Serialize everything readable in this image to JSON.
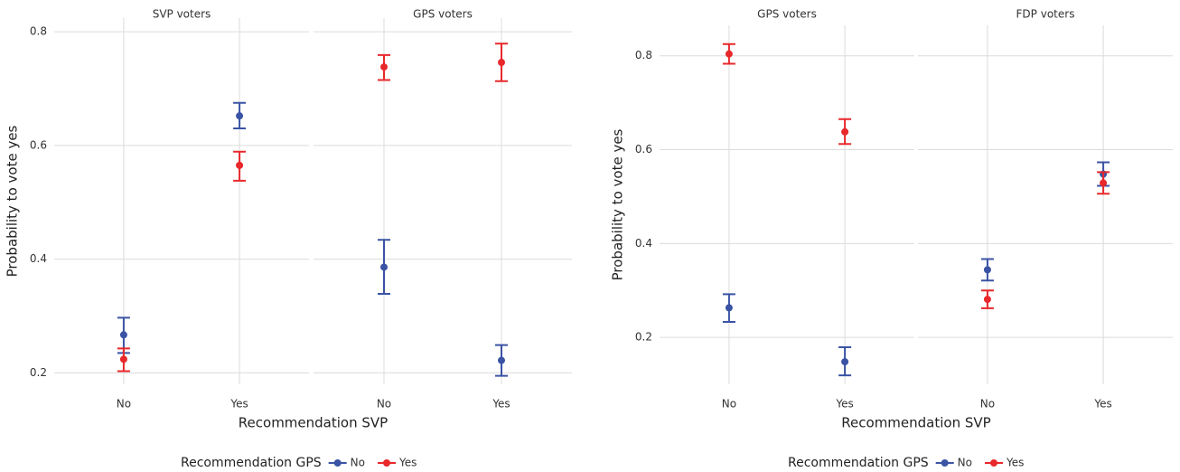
{
  "chart_data": [
    {
      "type": "errorbar",
      "y_label": "Probability to vote yes",
      "x_label": "Recommendation SVP",
      "legend_title": "Recommendation GPS",
      "categories": [
        "No",
        "Yes"
      ],
      "ylim": [
        0.18,
        0.824
      ],
      "yticks": [
        0.2,
        0.4,
        0.6,
        0.8
      ],
      "grid": true,
      "series": [
        {
          "name": "No",
          "color": "#3a53a4"
        },
        {
          "name": "Yes",
          "color": "#e8282b"
        }
      ],
      "facets": [
        {
          "title": "SVP voters",
          "series": [
            {
              "values": [
                0.267,
                0.652
              ],
              "lower": [
                0.235,
                0.63
              ],
              "upper": [
                0.297,
                0.675
              ]
            },
            {
              "values": [
                0.224,
                0.565
              ],
              "lower": [
                0.203,
                0.538
              ],
              "upper": [
                0.243,
                0.589
              ]
            }
          ]
        },
        {
          "title": "GPS voters",
          "series": [
            {
              "values": [
                0.386,
                0.222
              ],
              "lower": [
                0.339,
                0.195
              ],
              "upper": [
                0.434,
                0.249
              ]
            },
            {
              "values": [
                0.738,
                0.746
              ],
              "lower": [
                0.715,
                0.713
              ],
              "upper": [
                0.759,
                0.779
              ]
            }
          ]
        }
      ]
    },
    {
      "type": "errorbar",
      "y_label": "Probability to vote yes",
      "x_label": "Recommendation SVP",
      "legend_title": "Recommendation GPS",
      "categories": [
        "No",
        "Yes"
      ],
      "ylim": [
        0.1,
        0.865
      ],
      "yticks": [
        0.2,
        0.4,
        0.6,
        0.8
      ],
      "grid": true,
      "series": [
        {
          "name": "No",
          "color": "#3a53a4"
        },
        {
          "name": "Yes",
          "color": "#e8282b"
        }
      ],
      "facets": [
        {
          "title": "GPS voters",
          "series": [
            {
              "values": [
                0.263,
                0.148
              ],
              "lower": [
                0.233,
                0.119
              ],
              "upper": [
                0.292,
                0.179
              ]
            },
            {
              "values": [
                0.804,
                0.638
              ],
              "lower": [
                0.783,
                0.612
              ],
              "upper": [
                0.825,
                0.665
              ]
            }
          ]
        },
        {
          "title": "FDP voters",
          "series": [
            {
              "values": [
                0.344,
                0.548
              ],
              "lower": [
                0.321,
                0.523
              ],
              "upper": [
                0.367,
                0.573
              ]
            },
            {
              "values": [
                0.281,
                0.529
              ],
              "lower": [
                0.262,
                0.506
              ],
              "upper": [
                0.3,
                0.552
              ]
            }
          ]
        }
      ]
    }
  ]
}
